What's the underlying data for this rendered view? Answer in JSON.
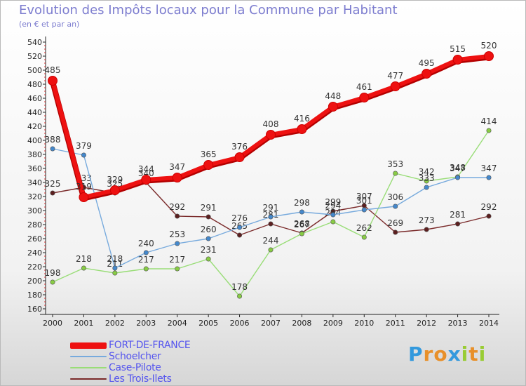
{
  "title": "Evolution des Impôts locaux pour la Commune par Habitant",
  "subtitle": "(en € et par an)",
  "brand": {
    "letters": [
      "P",
      "r",
      "o",
      "x",
      "i",
      "t",
      "i"
    ],
    "colors": [
      "#3399dd",
      "#e8902a",
      "#e8902a",
      "#3399dd",
      "#99cc33",
      "#e8902a",
      "#99cc33"
    ]
  },
  "chart_data": {
    "type": "line",
    "title": "Evolution des Impôts locaux pour la Commune par Habitant",
    "subtitle": "(en € et par an)",
    "xlabel": "",
    "ylabel": "",
    "x": [
      "2000",
      "2001",
      "2002",
      "2003",
      "2004",
      "2005",
      "2006",
      "2007",
      "2008",
      "2009",
      "2010",
      "2011",
      "2012",
      "2013",
      "2014"
    ],
    "ylim": [
      160,
      540
    ],
    "yticks": [
      160,
      180,
      200,
      220,
      240,
      260,
      280,
      300,
      320,
      340,
      360,
      380,
      400,
      420,
      440,
      460,
      480,
      500,
      520,
      540
    ],
    "grid": false,
    "series": [
      {
        "name": "Les Trois-Ilets",
        "color": "#7a2a2a",
        "marker": "#5c1f1f",
        "values": [
          325,
          333,
          325,
          340,
          292,
          291,
          265,
          281,
          268,
          299,
          307,
          269,
          273,
          281,
          292
        ],
        "labels": [
          "325",
          "333",
          "325",
          "340",
          "292",
          "291",
          "265",
          "281",
          "268",
          "299",
          "307",
          "269",
          "273",
          "281",
          "292"
        ]
      },
      {
        "name": "Case-Pilote",
        "color": "#99dd77",
        "marker": "#88cc44",
        "values": [
          198,
          218,
          211,
          217,
          217,
          231,
          178,
          244,
          267,
          284,
          262,
          353,
          342,
          348,
          414
        ],
        "labels": [
          "198",
          "218",
          "211",
          "217",
          "217",
          "231",
          "178",
          "244",
          "267",
          "284",
          "262",
          "353",
          "342",
          "348",
          "414"
        ]
      },
      {
        "name": "Schoelcher",
        "color": "#77aadd",
        "marker": "#4488cc",
        "values": [
          388,
          379,
          218,
          240,
          253,
          260,
          276,
          291,
          298,
          294,
          301,
          306,
          333,
          347,
          347
        ],
        "labels": [
          "388",
          "379",
          "218",
          "240",
          "253",
          "260",
          "276",
          "291",
          "298",
          "294",
          "301",
          "306",
          "333",
          "347",
          "347"
        ]
      },
      {
        "name": "FORT-DE-FRANCE",
        "color": "#ee1111",
        "marker": "#ee1111",
        "values": [
          485,
          319,
          329,
          344,
          347,
          365,
          376,
          408,
          416,
          448,
          461,
          477,
          495,
          515,
          520
        ],
        "labels": [
          "485",
          "319",
          "329",
          "344",
          "347",
          "365",
          "376",
          "408",
          "416",
          "448",
          "461",
          "477",
          "495",
          "515",
          "520"
        ]
      }
    ],
    "legend": [
      "FORT-DE-FRANCE",
      "Schoelcher",
      "Case-Pilote",
      "Les Trois-Ilets"
    ]
  }
}
